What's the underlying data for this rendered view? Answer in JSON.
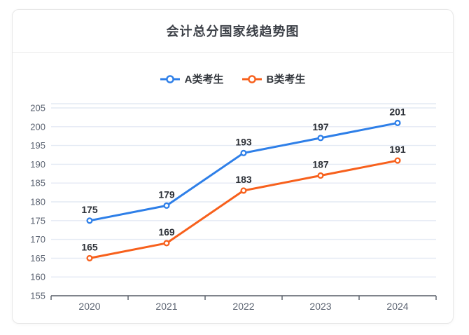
{
  "card": {
    "title": "会计总分国家线趋势图"
  },
  "colors": {
    "series_a": "#2e7fe8",
    "series_b": "#f7601c",
    "grid_line": "#e4eaf4",
    "axis_line": "#565c66",
    "axis_label": "#5b6371",
    "data_label": "#2b2f36",
    "card_border": "#e7e7e7",
    "divider": "#ebebeb"
  },
  "chart_data": {
    "type": "line",
    "title": "会计总分国家线趋势图",
    "categories": [
      "2020",
      "2021",
      "2022",
      "2023",
      "2024"
    ],
    "series": [
      {
        "name": "A类考生",
        "color": "#2e7fe8",
        "values": [
          175,
          179,
          193,
          197,
          201
        ]
      },
      {
        "name": "B类考生",
        "color": "#f7601c",
        "values": [
          165,
          169,
          183,
          187,
          191
        ]
      }
    ],
    "xlabel": "",
    "ylabel": "",
    "ylim": [
      155,
      205
    ],
    "y_ticks": [
      155,
      160,
      165,
      170,
      175,
      180,
      185,
      190,
      195,
      200,
      205
    ],
    "grid": true,
    "legend_position": "top",
    "data_labels": true
  }
}
